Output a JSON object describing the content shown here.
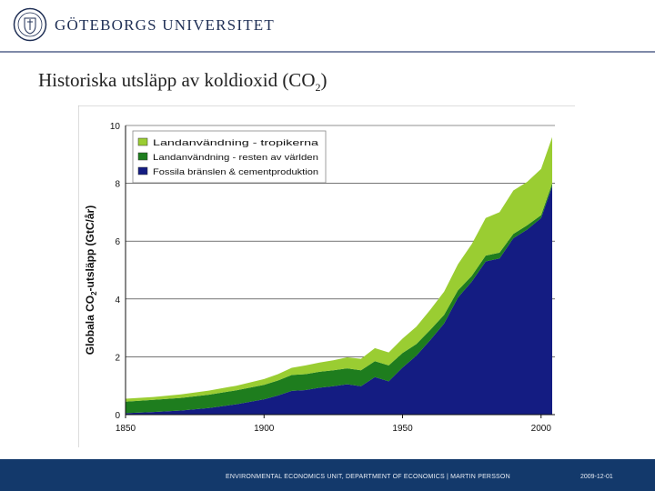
{
  "header": {
    "university": "GÖTEBORGS UNIVERSITET",
    "seal_icon": "university-seal-icon"
  },
  "slide": {
    "title_main": "Historiska utsläpp av koldioxid (CO",
    "title_sub": "2",
    "title_end": ")"
  },
  "footer": {
    "text": "ENVIRONMENTAL ECONOMICS UNIT, DEPARTMENT OF ECONOMICS | MARTIN PERSSON",
    "date": "2009-12-01"
  },
  "colors": {
    "tropics": "#9acd32",
    "rest": "#1e7d1e",
    "fossil": "#141c82",
    "footer": "#13396b"
  },
  "chart_data": {
    "type": "area",
    "stacked": true,
    "ylabel_main": "Globala CO",
    "ylabel_sub": "2",
    "ylabel_end": "-utsläpp (GtC/år)",
    "xlabel": "",
    "xlim": [
      1850,
      2005
    ],
    "ylim": [
      0,
      10
    ],
    "x_ticks": [
      "1850",
      "1900",
      "1950",
      "2000"
    ],
    "y_ticks": [
      "0",
      "2",
      "4",
      "6",
      "8",
      "10"
    ],
    "legend_position": "top-left",
    "x": [
      1850,
      1860,
      1870,
      1880,
      1890,
      1900,
      1905,
      1910,
      1915,
      1920,
      1925,
      1930,
      1935,
      1940,
      1945,
      1950,
      1955,
      1960,
      1965,
      1970,
      1975,
      1980,
      1985,
      1990,
      1995,
      2000,
      2004
    ],
    "series": [
      {
        "name": "Fossila bränslen & cementproduktion",
        "color_key": "fossil",
        "values": [
          0.05,
          0.09,
          0.14,
          0.23,
          0.36,
          0.53,
          0.66,
          0.82,
          0.85,
          0.93,
          0.98,
          1.05,
          0.98,
          1.3,
          1.15,
          1.63,
          2.04,
          2.58,
          3.15,
          4.05,
          4.6,
          5.3,
          5.4,
          6.1,
          6.4,
          6.8,
          7.9
        ]
      },
      {
        "name": "Landanvändning - resten av världen",
        "color_key": "rest",
        "values": [
          0.4,
          0.42,
          0.44,
          0.46,
          0.48,
          0.5,
          0.52,
          0.55,
          0.55,
          0.55,
          0.55,
          0.55,
          0.55,
          0.55,
          0.55,
          0.5,
          0.4,
          0.35,
          0.3,
          0.25,
          0.2,
          0.2,
          0.2,
          0.15,
          0.15,
          0.1,
          0.1
        ]
      },
      {
        "name": "Landanvändning - tropikerna",
        "color_key": "tropics",
        "values": [
          0.1,
          0.1,
          0.12,
          0.14,
          0.16,
          0.2,
          0.22,
          0.25,
          0.3,
          0.32,
          0.35,
          0.38,
          0.4,
          0.45,
          0.45,
          0.5,
          0.6,
          0.7,
          0.8,
          0.9,
          1.1,
          1.3,
          1.4,
          1.5,
          1.5,
          1.6,
          1.6
        ]
      }
    ]
  }
}
